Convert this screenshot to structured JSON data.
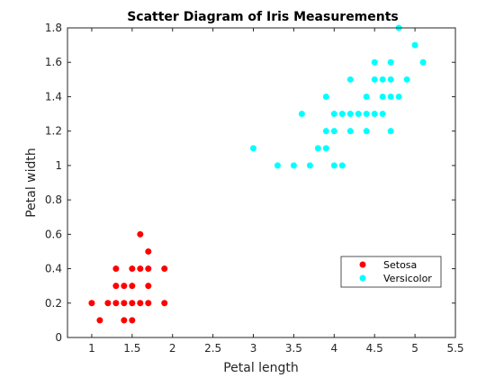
{
  "chart_data": {
    "type": "scatter",
    "title": "Scatter Diagram of Iris Measurements",
    "xlabel": "Petal length",
    "ylabel": "Petal width",
    "xlim": [
      0.7,
      5.5
    ],
    "ylim": [
      0,
      1.8
    ],
    "xticks": [
      1,
      1.5,
      2,
      2.5,
      3,
      3.5,
      4,
      4.5,
      5,
      5.5
    ],
    "yticks": [
      0,
      0.2,
      0.4,
      0.6,
      0.8,
      1,
      1.2,
      1.4,
      1.6,
      1.8
    ],
    "grid": false,
    "legend_position": "lower-right",
    "series": [
      {
        "name": "Setosa",
        "color": "#ff0000",
        "points": [
          [
            1.0,
            0.2
          ],
          [
            1.1,
            0.1
          ],
          [
            1.2,
            0.2
          ],
          [
            1.3,
            0.2
          ],
          [
            1.3,
            0.3
          ],
          [
            1.3,
            0.4
          ],
          [
            1.4,
            0.1
          ],
          [
            1.4,
            0.2
          ],
          [
            1.4,
            0.3
          ],
          [
            1.5,
            0.1
          ],
          [
            1.5,
            0.2
          ],
          [
            1.5,
            0.3
          ],
          [
            1.5,
            0.4
          ],
          [
            1.6,
            0.2
          ],
          [
            1.6,
            0.4
          ],
          [
            1.6,
            0.6
          ],
          [
            1.7,
            0.2
          ],
          [
            1.7,
            0.3
          ],
          [
            1.7,
            0.4
          ],
          [
            1.7,
            0.5
          ],
          [
            1.9,
            0.2
          ],
          [
            1.9,
            0.4
          ]
        ]
      },
      {
        "name": "Versicolor",
        "color": "#00ffff",
        "points": [
          [
            3.0,
            1.1
          ],
          [
            3.3,
            1.0
          ],
          [
            3.5,
            1.0
          ],
          [
            3.6,
            1.3
          ],
          [
            3.7,
            1.0
          ],
          [
            3.8,
            1.1
          ],
          [
            3.9,
            1.1
          ],
          [
            3.9,
            1.2
          ],
          [
            3.9,
            1.4
          ],
          [
            4.0,
            1.0
          ],
          [
            4.0,
            1.2
          ],
          [
            4.0,
            1.3
          ],
          [
            4.1,
            1.0
          ],
          [
            4.1,
            1.3
          ],
          [
            4.2,
            1.2
          ],
          [
            4.2,
            1.3
          ],
          [
            4.2,
            1.5
          ],
          [
            4.3,
            1.3
          ],
          [
            4.4,
            1.2
          ],
          [
            4.4,
            1.3
          ],
          [
            4.4,
            1.4
          ],
          [
            4.5,
            1.3
          ],
          [
            4.5,
            1.5
          ],
          [
            4.5,
            1.6
          ],
          [
            4.6,
            1.3
          ],
          [
            4.6,
            1.4
          ],
          [
            4.6,
            1.5
          ],
          [
            4.7,
            1.2
          ],
          [
            4.7,
            1.4
          ],
          [
            4.7,
            1.5
          ],
          [
            4.7,
            1.6
          ],
          [
            4.8,
            1.4
          ],
          [
            4.8,
            1.8
          ],
          [
            4.9,
            1.5
          ],
          [
            5.0,
            1.7
          ],
          [
            5.1,
            1.6
          ]
        ]
      }
    ]
  }
}
